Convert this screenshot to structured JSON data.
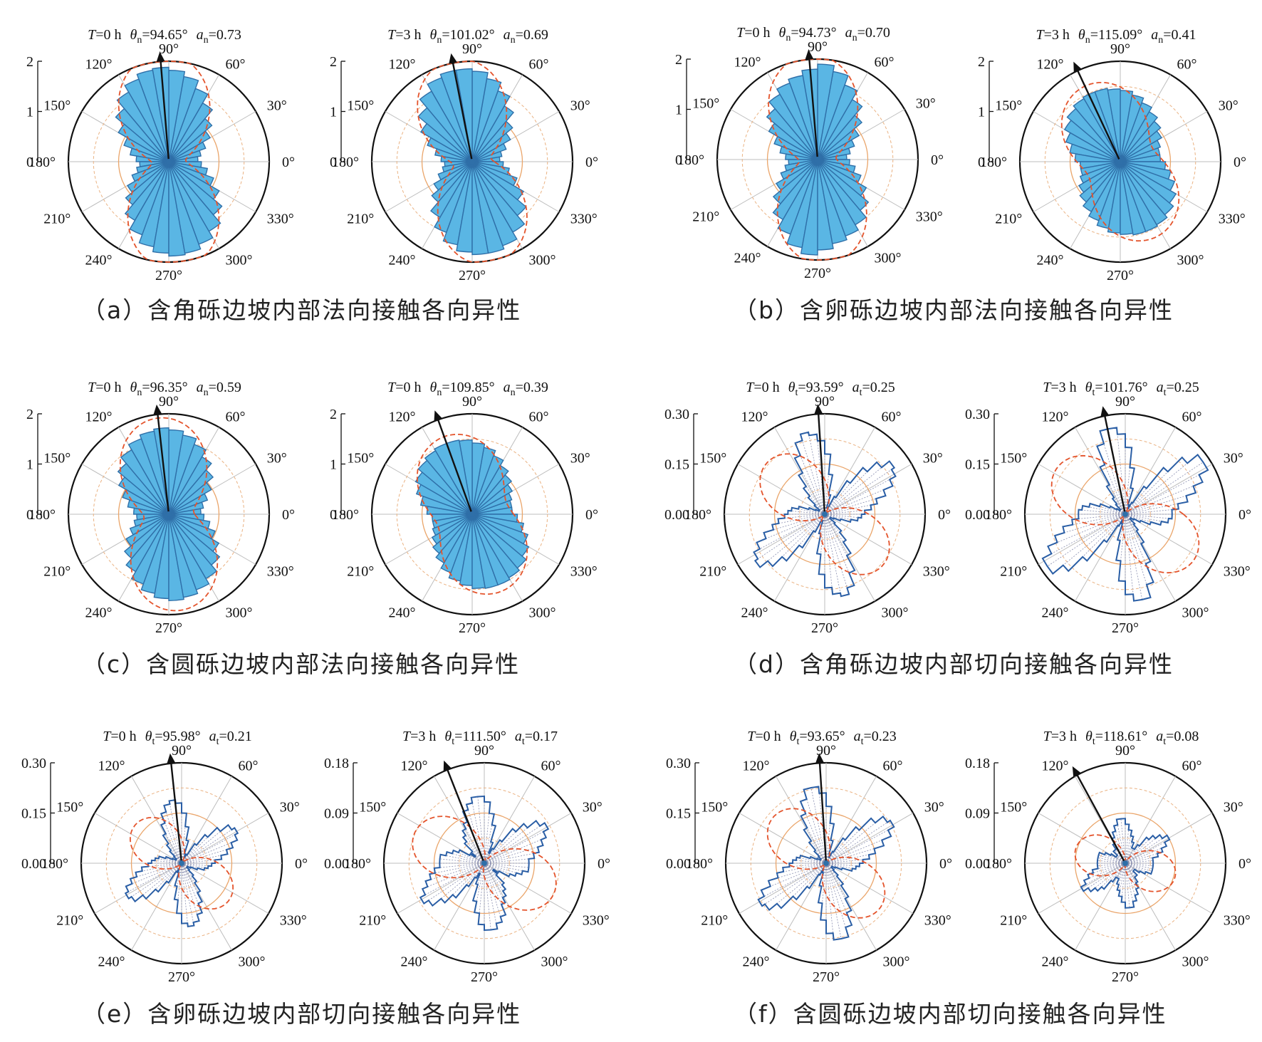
{
  "angle_labels": [
    "0°",
    "30°",
    "60°",
    "90°",
    "120°",
    "150°",
    "180°",
    "210°",
    "240°",
    "270°",
    "300°",
    "330°"
  ],
  "colors": {
    "bar_fill": "#5ab6e4",
    "bar_edge": "#2f6fa8",
    "step_line": "#2a5ea5",
    "fit_line": "#e4542c",
    "ring_solid": "#eaa56a",
    "ring_dash": "#eab282",
    "spoke": "#bdbdbd",
    "arrow": "#111111",
    "frame": "#111111"
  },
  "captions": [
    "（a）含角砾边坡内部法向接触各向异性",
    "（b）含卵砾边坡内部法向接触各向异性",
    "（c）含圆砾边坡内部法向接触各向异性",
    "（d）含角砾边坡内部切向接触各向异性",
    "（e）含卵砾边坡内部切向接触各向异性",
    "（f）含圆砾边坡内部切向接触各向异性"
  ],
  "chart_data": [
    {
      "id": "a-left",
      "type": "polar-bar",
      "title_T": "=0 h",
      "theta_value": "=94.65°",
      "a_value": "=0.73",
      "sub": "n",
      "theta_deg": 94.65,
      "a": 0.73,
      "rmax": 2,
      "ticks": [
        "0",
        "1",
        "2"
      ],
      "values": [
        0.58,
        0.65,
        0.78,
        0.95,
        1.12,
        1.35,
        1.55,
        1.72,
        1.82,
        1.88,
        1.85,
        1.75,
        1.6,
        1.38,
        1.16,
        0.95,
        0.78,
        0.65
      ]
    },
    {
      "id": "a-right",
      "type": "polar-bar",
      "title_T": "=3 h",
      "theta_value": "=101.02°",
      "a_value": "=0.69",
      "sub": "n",
      "theta_deg": 101.02,
      "a": 0.69,
      "rmax": 2,
      "ticks": [
        "0",
        "1",
        "2"
      ],
      "values": [
        0.55,
        0.6,
        0.72,
        0.88,
        1.05,
        1.28,
        1.5,
        1.68,
        1.8,
        1.85,
        1.85,
        1.78,
        1.62,
        1.4,
        1.18,
        0.95,
        0.75,
        0.62
      ]
    },
    {
      "id": "b-left",
      "type": "polar-bar",
      "title_T": "=0 h",
      "theta_value": "=94.73°",
      "a_value": "=0.70",
      "sub": "n",
      "theta_deg": 94.73,
      "a": 0.7,
      "rmax": 2,
      "ticks": [
        "0",
        "1",
        "2"
      ],
      "values": [
        0.58,
        0.66,
        0.78,
        0.95,
        1.15,
        1.38,
        1.58,
        1.78,
        1.9,
        1.8,
        1.7,
        1.62,
        1.5,
        1.32,
        1.12,
        0.92,
        0.76,
        0.64
      ]
    },
    {
      "id": "b-right",
      "type": "polar-bar",
      "title_T": "=3 h",
      "theta_value": "=115.09°",
      "a_value": "=0.41",
      "sub": "n",
      "theta_deg": 115.09,
      "a": 0.41,
      "rmax": 2,
      "ticks": [
        "0",
        "1",
        "2"
      ],
      "values": [
        0.8,
        0.8,
        0.85,
        0.95,
        1.05,
        1.15,
        1.25,
        1.35,
        1.42,
        1.45,
        1.48,
        1.48,
        1.45,
        1.38,
        1.28,
        1.15,
        1.02,
        0.9
      ]
    },
    {
      "id": "c-left",
      "type": "polar-bar",
      "title_T": "=0 h",
      "theta_value": "=96.35°",
      "a_value": "=0.59",
      "sub": "n",
      "theta_deg": 96.35,
      "a": 0.59,
      "rmax": 2,
      "ticks": [
        "0",
        "1",
        "2"
      ],
      "values": [
        0.64,
        0.7,
        0.82,
        0.98,
        1.15,
        1.32,
        1.48,
        1.6,
        1.68,
        1.72,
        1.68,
        1.6,
        1.48,
        1.32,
        1.15,
        0.98,
        0.83,
        0.7
      ]
    },
    {
      "id": "c-right",
      "type": "polar-bar",
      "title_T": "=0 h",
      "theta_value": "=109.85°",
      "a_value": "=0.39",
      "sub": "n",
      "theta_deg": 109.85,
      "a": 0.39,
      "rmax": 2,
      "ticks": [
        "0",
        "1",
        "2"
      ],
      "values": [
        0.8,
        0.8,
        0.84,
        0.92,
        1.02,
        1.12,
        1.24,
        1.35,
        1.42,
        1.48,
        1.5,
        1.5,
        1.46,
        1.4,
        1.3,
        1.18,
        1.04,
        0.9
      ]
    },
    {
      "id": "d-left",
      "type": "polar-step",
      "title_T": "=0 h",
      "theta_value": "=93.59°",
      "a_value": "=0.25",
      "sub": "t",
      "theta_deg": 93.59,
      "a": 0.25,
      "rmax": 0.3,
      "ticks": [
        "0.00",
        "0.15",
        "0.30"
      ],
      "values": [
        0.12,
        0.14,
        0.16,
        0.19,
        0.22,
        0.24,
        0.25,
        0.22,
        0.18,
        0.12,
        0.06,
        0.02,
        0.02,
        0.06,
        0.12,
        0.18,
        0.22,
        0.24,
        0.25,
        0.23,
        0.19,
        0.14,
        0.1,
        0.07,
        0.04,
        0.02,
        0.02,
        0.03,
        0.05,
        0.08,
        0.1,
        0.11
      ]
    },
    {
      "id": "d-right",
      "type": "polar-step",
      "title_T": "=3 h",
      "theta_value": "=101.76°",
      "a_value": "=0.25",
      "sub": "t",
      "theta_deg": 101.76,
      "a": 0.25,
      "rmax": 0.3,
      "ticks": [
        "0.00",
        "0.15",
        "0.30"
      ],
      "values": [
        0.14,
        0.16,
        0.19,
        0.22,
        0.25,
        0.28,
        0.28,
        0.24,
        0.18,
        0.1,
        0.04,
        0.02,
        0.03,
        0.08,
        0.14,
        0.2,
        0.24,
        0.26,
        0.26,
        0.22,
        0.16,
        0.1,
        0.06,
        0.04,
        0.02,
        0.02,
        0.03,
        0.05,
        0.08,
        0.11,
        0.13,
        0.14
      ]
    },
    {
      "id": "e-left",
      "type": "polar-step",
      "title_T": "=0 h",
      "theta_value": "=95.98°",
      "a_value": "=0.21",
      "sub": "t",
      "theta_deg": 95.98,
      "a": 0.21,
      "rmax": 0.3,
      "ticks": [
        "0.00",
        "0.15",
        "0.30"
      ],
      "values": [
        0.1,
        0.12,
        0.14,
        0.16,
        0.18,
        0.19,
        0.18,
        0.15,
        0.11,
        0.07,
        0.03,
        0.02,
        0.03,
        0.07,
        0.11,
        0.15,
        0.18,
        0.19,
        0.18,
        0.16,
        0.13,
        0.1,
        0.07,
        0.05,
        0.03,
        0.02,
        0.02,
        0.03,
        0.05,
        0.07,
        0.08,
        0.09
      ]
    },
    {
      "id": "e-right",
      "type": "polar-step",
      "title_T": "=3 h",
      "theta_value": "=111.50°",
      "a_value": "=0.17",
      "sub": "t",
      "theta_deg": 111.5,
      "a": 0.17,
      "rmax": 0.18,
      "ticks": [
        "0.00",
        "0.09",
        "0.18"
      ],
      "values": [
        0.08,
        0.09,
        0.1,
        0.11,
        0.12,
        0.13,
        0.12,
        0.1,
        0.08,
        0.05,
        0.03,
        0.02,
        0.04,
        0.07,
        0.09,
        0.11,
        0.12,
        0.12,
        0.11,
        0.1,
        0.08,
        0.07,
        0.06,
        0.05,
        0.03,
        0.02,
        0.03,
        0.05,
        0.06,
        0.07,
        0.08,
        0.08
      ]
    },
    {
      "id": "f-left",
      "type": "polar-step",
      "title_T": "=0 h",
      "theta_value": "=93.65°",
      "a_value": "=0.23",
      "sub": "t",
      "theta_deg": 93.65,
      "a": 0.23,
      "rmax": 0.3,
      "ticks": [
        "0.00",
        "0.15",
        "0.30"
      ],
      "values": [
        0.11,
        0.13,
        0.15,
        0.18,
        0.21,
        0.23,
        0.22,
        0.19,
        0.14,
        0.09,
        0.04,
        0.02,
        0.03,
        0.07,
        0.12,
        0.17,
        0.21,
        0.23,
        0.23,
        0.2,
        0.16,
        0.12,
        0.08,
        0.05,
        0.03,
        0.02,
        0.02,
        0.03,
        0.05,
        0.08,
        0.09,
        0.1
      ]
    },
    {
      "id": "f-right",
      "type": "polar-step",
      "title_T": "=3 h",
      "theta_value": "=118.61°",
      "a_value": "=0.08",
      "sub": "t",
      "theta_deg": 118.61,
      "a": 0.08,
      "rmax": 0.18,
      "ticks": [
        "0.00",
        "0.09",
        "0.18"
      ],
      "values": [
        0.05,
        0.05,
        0.06,
        0.07,
        0.08,
        0.09,
        0.08,
        0.07,
        0.06,
        0.04,
        0.03,
        0.03,
        0.04,
        0.05,
        0.06,
        0.07,
        0.08,
        0.08,
        0.07,
        0.06,
        0.05,
        0.04,
        0.03,
        0.03,
        0.02,
        0.02,
        0.03,
        0.04,
        0.05,
        0.05,
        0.05,
        0.05
      ]
    }
  ]
}
